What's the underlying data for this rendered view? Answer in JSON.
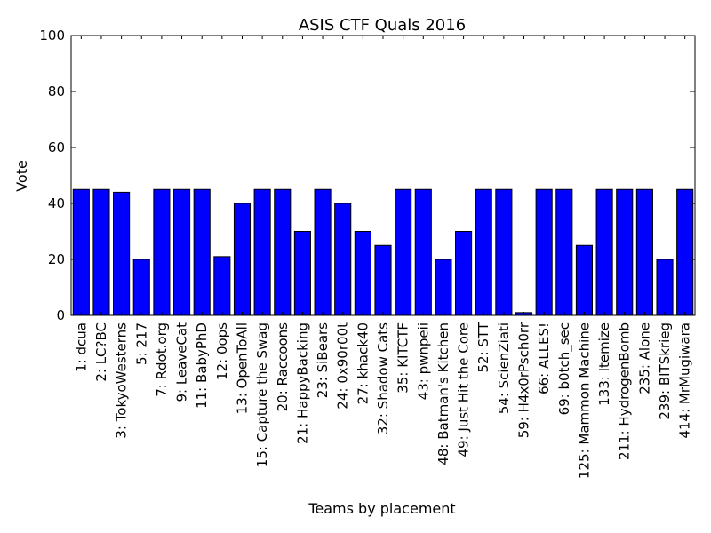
{
  "chart_data": {
    "type": "bar",
    "title": "ASIS CTF Quals 2016",
    "xlabel": "Teams by placement",
    "ylabel": "Vote",
    "ylim": [
      0,
      100
    ],
    "yticks": [
      0,
      20,
      40,
      60,
      80,
      100
    ],
    "grid": false,
    "legend": "none",
    "bar_color": "#0000ff",
    "categories": [
      "1: dcua",
      "2: LC?BC",
      "3: TokyoWesterns",
      "5: 217",
      "7: Rdot.org",
      "9: LeaveCat",
      "11: BabyPhD",
      "12: 0ops",
      "13: OpenToAll",
      "15: Capture the Swag",
      "20: Raccoons",
      "21: HappyBacking",
      "23: SiBears",
      "24: 0x90r00t",
      "27: khack40",
      "32: Shadow Cats",
      "35: KITCTF",
      "43: pwnpeii",
      "48: Batman's Kitchen",
      "49: Just Hit the Core",
      "52: STT",
      "54: ScienZiati",
      "59: H4x0rPsch0rr",
      "66: ALLES!",
      "69: b0tch_sec",
      "125: Mammon Machine",
      "133: Itemize",
      "211: HydrogenBomb",
      "235: Alone",
      "239: BITSkrieg",
      "414: MrMugiwara"
    ],
    "values": [
      45,
      45,
      44,
      20,
      45,
      45,
      45,
      21,
      40,
      45,
      45,
      30,
      45,
      40,
      30,
      25,
      45,
      45,
      20,
      30,
      45,
      45,
      1,
      45,
      45,
      25,
      45,
      45,
      45,
      20,
      45
    ]
  }
}
